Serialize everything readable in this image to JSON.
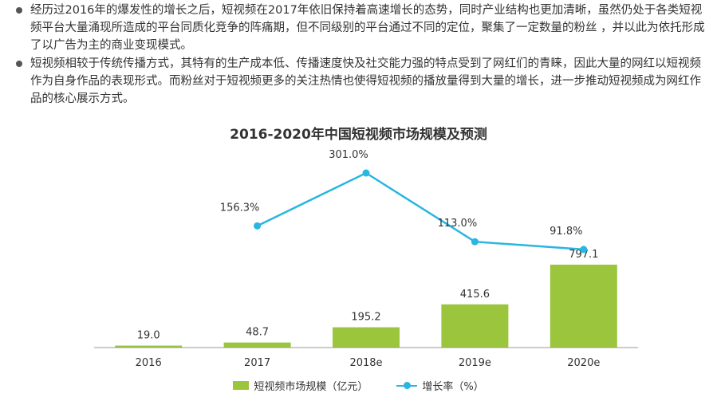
{
  "paragraphs": [
    "经历过2016年的爆发性的增长之后，短视频在2017年依旧保持着高速增长的态势，同时产业结构也更加清晰，虽然仍处于各类短视频平台大量涌现所造成的平台同质化竞争的阵痛期，但不同级别的平台通过不同的定位，聚集了一定数量的粉丝 ，并以此为依托形成了以广告为主的商业变现模式。",
    "短视频相较于传统传播方式，其特有的生产成本低、传播速度快及社交能力强的特点受到了网红们的青睐，因此大量的网红以短视频作为自身作品的表现形式。而粉丝对于短视频更多的关注热情也使得短视频的播放量得到大量的增长，进一步推动短视频成为网红作品的核心展示方式。"
  ],
  "chart_data": {
    "type": "bar",
    "title": "2016-2020年中国短视频市场规模及预测",
    "categories": [
      "2016",
      "2017",
      "2018e",
      "2019e",
      "2020e"
    ],
    "series": [
      {
        "name": "短视频市场规模（亿元）",
        "type": "bar",
        "values": [
          19.0,
          48.7,
          195.2,
          415.6,
          797.1
        ],
        "labels": [
          "19.0",
          "48.7",
          "195.2",
          "415.6",
          "797.1"
        ],
        "color": "#9bc53d"
      },
      {
        "name": "增长率（%）",
        "type": "line",
        "values": [
          null,
          156.3,
          301.0,
          113.0,
          91.8
        ],
        "labels": [
          "",
          "156.3%",
          "301.0%",
          "113.0%",
          "91.8%"
        ],
        "color": "#29b6e0"
      }
    ],
    "xlabel": "",
    "ylabel": "",
    "bar_ylim": [
      0,
      820
    ],
    "line_ylim": [
      0,
      301.0
    ],
    "legend_position": "bottom",
    "grid": false
  }
}
